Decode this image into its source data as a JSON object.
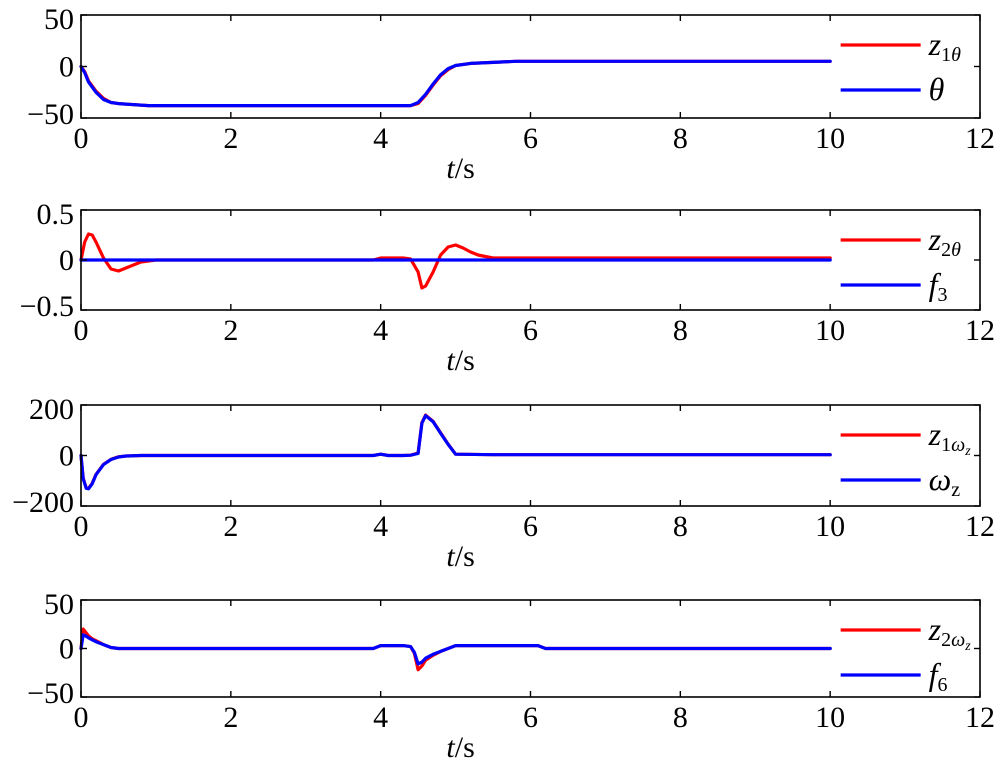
{
  "chart_data": [
    {
      "type": "line",
      "xlim": [
        0,
        12
      ],
      "ylim": [
        -50,
        50
      ],
      "xticks": [
        0,
        2,
        4,
        6,
        8,
        10,
        12
      ],
      "yticks": [
        -50,
        0,
        50
      ],
      "ytick_labels": [
        "−50",
        "0",
        "50"
      ],
      "xlabel": {
        "italic": "t",
        "rest": "/s"
      },
      "grid": false,
      "legend_position": "top-right",
      "series": [
        {
          "legend": {
            "main": "z",
            "sub": "1",
            "subItalic": "θ"
          },
          "color": "#ff0000",
          "x": [
            0,
            0.05,
            0.1,
            0.2,
            0.3,
            0.4,
            0.5,
            0.7,
            0.9,
            1.5,
            2.5,
            3.5,
            4.4,
            4.5,
            4.6,
            4.7,
            4.8,
            4.9,
            5.0,
            5.2,
            5.5,
            5.8,
            6.5,
            8,
            10
          ],
          "y": [
            0,
            -5,
            -14,
            -24,
            -31,
            -35,
            -36,
            -37,
            -38,
            -38,
            -38,
            -38,
            -38,
            -36,
            -28,
            -18,
            -9,
            -3,
            1,
            3,
            4,
            5,
            5,
            5,
            5
          ]
        },
        {
          "legend": {
            "main": "θ",
            "sub": "",
            "subItalic": ""
          },
          "color": "#0000ff",
          "x": [
            0,
            0.05,
            0.1,
            0.2,
            0.3,
            0.4,
            0.5,
            0.7,
            0.9,
            1.5,
            2.5,
            3.5,
            4.4,
            4.5,
            4.6,
            4.7,
            4.8,
            4.9,
            5.0,
            5.2,
            5.5,
            5.8,
            6.5,
            8,
            10
          ],
          "y": [
            0,
            -6,
            -15,
            -25,
            -32,
            -35,
            -36,
            -37,
            -38,
            -38,
            -38,
            -38,
            -38,
            -35,
            -27,
            -17,
            -8,
            -2,
            1,
            3,
            4,
            5,
            5,
            5,
            5
          ]
        }
      ]
    },
    {
      "type": "line",
      "xlim": [
        0,
        12
      ],
      "ylim": [
        -0.5,
        0.5
      ],
      "xticks": [
        0,
        2,
        4,
        6,
        8,
        10,
        12
      ],
      "yticks": [
        -0.5,
        0,
        0.5
      ],
      "ytick_labels": [
        "−0.5",
        "0",
        "0.5"
      ],
      "xlabel": {
        "italic": "t",
        "rest": "/s"
      },
      "grid": false,
      "legend_position": "top-right",
      "series": [
        {
          "legend": {
            "main": "z",
            "sub": "2",
            "subItalic": "θ"
          },
          "color": "#ff0000",
          "x": [
            0,
            0.05,
            0.1,
            0.15,
            0.2,
            0.3,
            0.4,
            0.5,
            0.6,
            0.7,
            0.8,
            0.9,
            1.0,
            3.9,
            4.0,
            4.3,
            4.4,
            4.5,
            4.55,
            4.6,
            4.7,
            4.8,
            4.9,
            5.0,
            5.1,
            5.2,
            5.3,
            5.5,
            6,
            8,
            10
          ],
          "y": [
            0,
            0.18,
            0.26,
            0.25,
            0.18,
            0.02,
            -0.09,
            -0.11,
            -0.08,
            -0.05,
            -0.02,
            -0.01,
            0,
            0,
            0.02,
            0.02,
            0.01,
            -0.12,
            -0.28,
            -0.26,
            -0.12,
            0.05,
            0.13,
            0.15,
            0.12,
            0.08,
            0.05,
            0.02,
            0.02,
            0.02,
            0.02
          ]
        },
        {
          "legend": {
            "main": "f",
            "sub": "3",
            "subItalic": ""
          },
          "color": "#0000ff",
          "x": [
            0,
            10
          ],
          "y": [
            0,
            0
          ]
        }
      ]
    },
    {
      "type": "line",
      "xlim": [
        0,
        12
      ],
      "ylim": [
        -200,
        200
      ],
      "xticks": [
        0,
        2,
        4,
        6,
        8,
        10,
        12
      ],
      "yticks": [
        -200,
        0,
        200
      ],
      "ytick_labels": [
        "−200",
        "0",
        "200"
      ],
      "xlabel": {
        "italic": "t",
        "rest": "/s"
      },
      "grid": false,
      "legend_position": "top-right",
      "series": [
        {
          "legend": {
            "main": "z",
            "sub": "1",
            "subItalic": "ω",
            "subsub": "z"
          },
          "color": "#ff0000",
          "x": [
            0,
            0.03,
            0.07,
            0.1,
            0.15,
            0.2,
            0.3,
            0.4,
            0.5,
            0.6,
            0.8,
            1.5,
            3.9,
            4.0,
            4.1,
            4.3,
            4.4,
            4.5,
            4.55,
            4.6,
            4.7,
            4.8,
            4.9,
            5.0,
            5.5,
            6,
            8,
            10
          ],
          "y": [
            0,
            -90,
            -128,
            -130,
            -110,
            -75,
            -35,
            -15,
            -5,
            -2,
            0,
            0,
            0,
            5,
            0,
            0,
            1,
            10,
            130,
            160,
            135,
            90,
            45,
            5,
            3,
            3,
            3,
            3
          ]
        },
        {
          "legend": {
            "main": "ω",
            "sub": "z",
            "subItalic": ""
          },
          "color": "#0000ff",
          "x": [
            0,
            0.03,
            0.07,
            0.1,
            0.15,
            0.2,
            0.3,
            0.4,
            0.5,
            0.6,
            0.8,
            1.5,
            3.9,
            4.0,
            4.1,
            4.3,
            4.4,
            4.5,
            4.55,
            4.6,
            4.7,
            4.8,
            4.9,
            5.0,
            5.5,
            6,
            8,
            10
          ],
          "y": [
            0,
            -92,
            -130,
            -132,
            -112,
            -76,
            -36,
            -16,
            -6,
            -2,
            0,
            0,
            0,
            5,
            0,
            0,
            1,
            8,
            128,
            158,
            134,
            88,
            44,
            5,
            3,
            3,
            3,
            3
          ]
        }
      ]
    },
    {
      "type": "line",
      "xlim": [
        0,
        12
      ],
      "ylim": [
        -50,
        50
      ],
      "xticks": [
        0,
        2,
        4,
        6,
        8,
        10,
        12
      ],
      "yticks": [
        -50,
        0,
        50
      ],
      "ytick_labels": [
        "−50",
        "0",
        "50"
      ],
      "xlabel": {
        "italic": "t",
        "rest": "/s"
      },
      "grid": false,
      "legend_position": "top-right",
      "series": [
        {
          "legend": {
            "main": "z",
            "sub": "2",
            "subItalic": "ω",
            "subsub": "z"
          },
          "color": "#ff0000",
          "x": [
            0,
            0.03,
            0.06,
            0.1,
            0.15,
            0.2,
            0.3,
            0.4,
            0.5,
            1,
            3.9,
            4.0,
            4.3,
            4.4,
            4.45,
            4.5,
            4.55,
            4.6,
            4.7,
            4.8,
            4.9,
            5.0,
            6.1,
            6.2,
            8,
            10
          ],
          "y": [
            0,
            20,
            17,
            13,
            10,
            8,
            4,
            1,
            0,
            0,
            0,
            3,
            3,
            2,
            -5,
            -22,
            -18,
            -12,
            -7,
            -3,
            0,
            3,
            3,
            0,
            0,
            0
          ]
        },
        {
          "legend": {
            "main": "f",
            "sub": "6",
            "subItalic": ""
          },
          "color": "#0000ff",
          "x": [
            0,
            0.03,
            0.06,
            0.1,
            0.15,
            0.2,
            0.3,
            0.4,
            0.5,
            1,
            3.9,
            4.0,
            4.3,
            4.4,
            4.45,
            4.5,
            4.55,
            4.6,
            4.7,
            4.8,
            4.9,
            5.0,
            6.1,
            6.2,
            8,
            10
          ],
          "y": [
            0,
            14,
            13,
            11,
            9,
            7,
            4,
            1,
            0,
            0,
            0,
            3,
            3,
            2,
            -4,
            -16,
            -14,
            -10,
            -6,
            -3,
            0,
            3,
            3,
            0,
            0,
            0
          ]
        }
      ]
    }
  ]
}
